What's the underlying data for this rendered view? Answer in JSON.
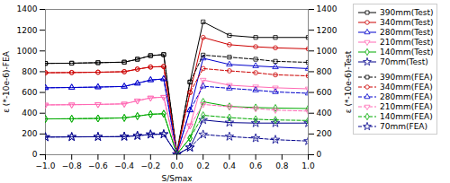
{
  "chart_data": {
    "type": "line",
    "xlabel": "S/Smax",
    "ylabel": "ε (*-10e-6)-FEA",
    "y2label": "ε (*-10e-6)-Test",
    "x": [
      -1.0,
      -0.8,
      -0.6,
      -0.4,
      -0.3,
      -0.2,
      -0.1,
      0.0,
      0.1,
      0.2,
      0.4,
      0.6,
      0.75,
      1.0
    ],
    "xlim": [
      -1.0,
      1.0
    ],
    "xticks": [
      {
        "value": -1.0,
        "label": "−1.0"
      },
      {
        "value": -0.8,
        "label": "−0.8"
      },
      {
        "value": -0.6,
        "label": "−0.6"
      },
      {
        "value": -0.4,
        "label": "−0.4"
      },
      {
        "value": -0.2,
        "label": "−0.2"
      },
      {
        "value": 0.0,
        "label": "0.0"
      },
      {
        "value": 0.2,
        "label": "0.2"
      },
      {
        "value": 0.4,
        "label": "0.4"
      },
      {
        "value": 0.6,
        "label": "0.6"
      },
      {
        "value": 0.8,
        "label": "0.8"
      },
      {
        "value": 1.0,
        "label": "1.0"
      }
    ],
    "ylim": [
      0,
      1400
    ],
    "yticks": [
      0,
      200,
      400,
      600,
      800,
      1000,
      1200,
      1400
    ],
    "y2lim": [
      0,
      1400
    ],
    "y2ticks": [
      0,
      200,
      400,
      600,
      800,
      1000,
      1200,
      1400
    ],
    "legend": "right",
    "series": [
      {
        "name": "390mm(Test)",
        "color": "#000000",
        "axis": "y2",
        "marker": "square",
        "line_style": "solid",
        "values": [
          880,
          882,
          887,
          892,
          920,
          955,
          965,
          20,
          700,
          1280,
          1150,
          1130,
          1130,
          1130
        ]
      },
      {
        "name": "340mm(Test)",
        "color": "#cc0000",
        "axis": "y2",
        "marker": "circle",
        "line_style": "solid",
        "values": [
          790,
          792,
          795,
          800,
          825,
          845,
          850,
          15,
          600,
          1130,
          1060,
          1040,
          1030,
          1020
        ]
      },
      {
        "name": "280mm(Test)",
        "color": "#0000cc",
        "axis": "y2",
        "marker": "triangle-up",
        "line_style": "solid",
        "values": [
          645,
          648,
          652,
          658,
          688,
          720,
          730,
          10,
          430,
          930,
          870,
          855,
          845,
          830
        ]
      },
      {
        "name": "210mm(Test)",
        "color": "#ff69b4",
        "axis": "y2",
        "marker": "triangle-down",
        "line_style": "solid",
        "values": [
          480,
          482,
          485,
          490,
          520,
          548,
          555,
          8,
          280,
          720,
          670,
          655,
          645,
          635
        ]
      },
      {
        "name": "140mm(Test)",
        "color": "#00aa00",
        "axis": "y2",
        "marker": "diamond",
        "line_style": "solid",
        "values": [
          345,
          347,
          350,
          355,
          372,
          390,
          395,
          5,
          160,
          510,
          465,
          455,
          450,
          445
        ]
      },
      {
        "name": "70mm(Test)",
        "color": "#00008b",
        "axis": "y2",
        "marker": "star",
        "line_style": "solid",
        "values": [
          170,
          172,
          173,
          175,
          183,
          196,
          198,
          3,
          70,
          335,
          310,
          305,
          305,
          305
        ]
      },
      {
        "name": "390mm(FEA)",
        "color": "#000000",
        "marker": "square",
        "line_style": "dashed",
        "values": [
          880,
          882,
          887,
          892,
          920,
          955,
          965,
          20,
          700,
          960,
          940,
          920,
          900,
          890
        ]
      },
      {
        "name": "340mm(FEA)",
        "color": "#cc0000",
        "marker": "circle",
        "line_style": "dashed",
        "values": [
          790,
          792,
          795,
          800,
          825,
          845,
          850,
          15,
          600,
          830,
          808,
          790,
          770,
          760
        ]
      },
      {
        "name": "280mm(FEA)",
        "color": "#0000cc",
        "marker": "triangle-up",
        "line_style": "dashed",
        "values": [
          645,
          648,
          652,
          658,
          688,
          720,
          730,
          10,
          430,
          660,
          640,
          622,
          605,
          592
        ]
      },
      {
        "name": "210mm(FEA)",
        "color": "#ff69b4",
        "marker": "triangle-down",
        "line_style": "dashed",
        "values": [
          480,
          482,
          485,
          490,
          520,
          548,
          555,
          8,
          280,
          485,
          462,
          445,
          430,
          420
        ]
      },
      {
        "name": "140mm(FEA)",
        "color": "#00aa00",
        "marker": "diamond",
        "line_style": "dashed",
        "values": [
          345,
          347,
          350,
          355,
          372,
          390,
          395,
          5,
          160,
          380,
          358,
          342,
          335,
          330
        ]
      },
      {
        "name": "70mm(FEA)",
        "color": "#00008b",
        "marker": "star",
        "line_style": "dashed",
        "values": [
          170,
          172,
          173,
          175,
          183,
          196,
          198,
          3,
          70,
          195,
          175,
          160,
          145,
          132
        ]
      }
    ]
  }
}
